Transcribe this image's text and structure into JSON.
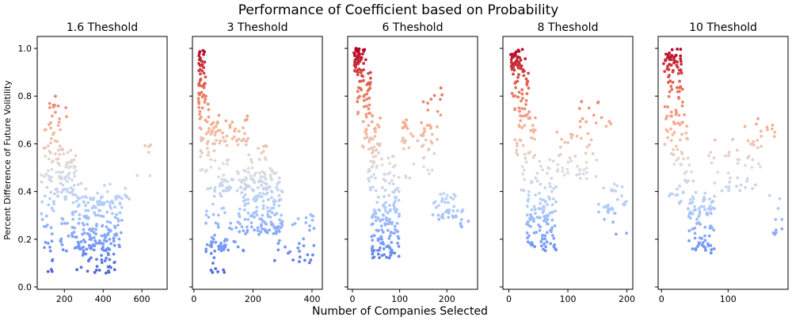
{
  "chart_data": {
    "type": "scatter",
    "title": "Performance of Coefficient based on Probability",
    "xlabel": "Number of Companies Selected",
    "ylabel": "Percent Difference of Future Volitility",
    "ylim": [
      -0.01,
      1.05
    ],
    "yticks": [
      0.0,
      0.2,
      0.4,
      0.6,
      0.8,
      1.0
    ],
    "ytick_labels": [
      "0.0",
      "0.2",
      "0.4",
      "0.6",
      "0.8",
      "1.0"
    ],
    "colormap": "coolwarm",
    "colormap_stops": [
      "#3b4cc0",
      "#7396f5",
      "#b0cbfc",
      "#dddddd",
      "#f6b396",
      "#e46e56",
      "#b40426"
    ],
    "panels": [
      {
        "title": "1.6 Theshold",
        "xlim": [
          60,
          730
        ],
        "xticks": [
          200,
          400,
          600
        ],
        "xtick_labels": [
          "200",
          "400",
          "600"
        ],
        "seed": 11,
        "clusters": [
          {
            "n": 25,
            "x": [
              90,
              200
            ],
            "y": [
              0.55,
              0.7
            ]
          },
          {
            "n": 12,
            "x": [
              120,
              240
            ],
            "y": [
              0.7,
              0.8
            ]
          },
          {
            "n": 60,
            "x": [
              160,
              260
            ],
            "y": [
              0.38,
              0.58
            ]
          },
          {
            "n": 30,
            "x": [
              80,
              160
            ],
            "y": [
              0.3,
              0.55
            ]
          },
          {
            "n": 18,
            "x": [
              80,
              140
            ],
            "y": [
              0.05,
              0.3
            ]
          },
          {
            "n": 160,
            "x": [
              180,
              500
            ],
            "y": [
              0.15,
              0.38
            ]
          },
          {
            "n": 60,
            "x": [
              260,
              460
            ],
            "y": [
              0.05,
              0.22
            ]
          },
          {
            "n": 25,
            "x": [
              260,
              560
            ],
            "y": [
              0.3,
              0.45
            ]
          },
          {
            "n": 6,
            "x": [
              560,
              700
            ],
            "y": [
              0.4,
              0.62
            ]
          }
        ]
      },
      {
        "title": "3 Theshold",
        "xlim": [
          -5,
          435
        ],
        "xticks": [
          0,
          200,
          400
        ],
        "xtick_labels": [
          "0",
          "200",
          "400"
        ],
        "seed": 23,
        "clusters": [
          {
            "n": 25,
            "x": [
              15,
              40
            ],
            "y": [
              0.86,
              1.0
            ]
          },
          {
            "n": 30,
            "x": [
              15,
              50
            ],
            "y": [
              0.7,
              0.86
            ]
          },
          {
            "n": 40,
            "x": [
              20,
              80
            ],
            "y": [
              0.48,
              0.7
            ]
          },
          {
            "n": 70,
            "x": [
              80,
              190
            ],
            "y": [
              0.4,
              0.72
            ]
          },
          {
            "n": 160,
            "x": [
              170,
              300
            ],
            "y": [
              0.22,
              0.5
            ]
          },
          {
            "n": 60,
            "x": [
              40,
              170
            ],
            "y": [
              0.15,
              0.45
            ]
          },
          {
            "n": 25,
            "x": [
              40,
              110
            ],
            "y": [
              0.06,
              0.2
            ]
          },
          {
            "n": 40,
            "x": [
              260,
              410
            ],
            "y": [
              0.1,
              0.32
            ]
          },
          {
            "n": 15,
            "x": [
              180,
              250
            ],
            "y": [
              0.48,
              0.6
            ]
          }
        ]
      },
      {
        "title": "6 Theshold",
        "xlim": [
          -10,
          265
        ],
        "xticks": [
          0,
          100,
          200
        ],
        "xtick_labels": [
          "0",
          "100",
          "200"
        ],
        "seed": 37,
        "clusters": [
          {
            "n": 50,
            "x": [
              3,
              30
            ],
            "y": [
              0.9,
              1.0
            ]
          },
          {
            "n": 40,
            "x": [
              10,
              40
            ],
            "y": [
              0.72,
              0.9
            ]
          },
          {
            "n": 35,
            "x": [
              20,
              60
            ],
            "y": [
              0.55,
              0.72
            ]
          },
          {
            "n": 60,
            "x": [
              30,
              100
            ],
            "y": [
              0.35,
              0.55
            ]
          },
          {
            "n": 110,
            "x": [
              40,
              100
            ],
            "y": [
              0.12,
              0.35
            ]
          },
          {
            "n": 50,
            "x": [
              100,
              180
            ],
            "y": [
              0.45,
              0.7
            ]
          },
          {
            "n": 35,
            "x": [
              170,
              220
            ],
            "y": [
              0.28,
              0.4
            ]
          },
          {
            "n": 8,
            "x": [
              220,
              250
            ],
            "y": [
              0.25,
              0.33
            ]
          },
          {
            "n": 10,
            "x": [
              150,
              190
            ],
            "y": [
              0.72,
              0.85
            ]
          }
        ]
      },
      {
        "title": "8 Theshold",
        "xlim": [
          -10,
          210
        ],
        "xticks": [
          0,
          100,
          200
        ],
        "xtick_labels": [
          "0",
          "100",
          "200"
        ],
        "seed": 53,
        "clusters": [
          {
            "n": 45,
            "x": [
              3,
              28
            ],
            "y": [
              0.9,
              1.0
            ]
          },
          {
            "n": 40,
            "x": [
              5,
              35
            ],
            "y": [
              0.7,
              0.9
            ]
          },
          {
            "n": 30,
            "x": [
              10,
              45
            ],
            "y": [
              0.55,
              0.72
            ]
          },
          {
            "n": 45,
            "x": [
              20,
              80
            ],
            "y": [
              0.35,
              0.55
            ]
          },
          {
            "n": 90,
            "x": [
              30,
              80
            ],
            "y": [
              0.15,
              0.35
            ]
          },
          {
            "n": 45,
            "x": [
              80,
              150
            ],
            "y": [
              0.45,
              0.65
            ]
          },
          {
            "n": 25,
            "x": [
              160,
              200
            ],
            "y": [
              0.3,
              0.45
            ]
          },
          {
            "n": 15,
            "x": [
              100,
              180
            ],
            "y": [
              0.66,
              0.78
            ]
          },
          {
            "n": 8,
            "x": [
              150,
              200
            ],
            "y": [
              0.22,
              0.35
            ]
          }
        ]
      },
      {
        "title": "10 Theshold",
        "xlim": [
          -5,
          190
        ],
        "xticks": [
          0,
          100
        ],
        "xtick_labels": [
          "0",
          "100"
        ],
        "seed": 71,
        "clusters": [
          {
            "n": 40,
            "x": [
              3,
              30
            ],
            "y": [
              0.9,
              1.0
            ]
          },
          {
            "n": 35,
            "x": [
              5,
              35
            ],
            "y": [
              0.7,
              0.9
            ]
          },
          {
            "n": 30,
            "x": [
              5,
              40
            ],
            "y": [
              0.55,
              0.7
            ]
          },
          {
            "n": 30,
            "x": [
              10,
              50
            ],
            "y": [
              0.35,
              0.55
            ]
          },
          {
            "n": 80,
            "x": [
              40,
              80
            ],
            "y": [
              0.14,
              0.4
            ]
          },
          {
            "n": 45,
            "x": [
              70,
              150
            ],
            "y": [
              0.4,
              0.62
            ]
          },
          {
            "n": 12,
            "x": [
              120,
              175
            ],
            "y": [
              0.6,
              0.72
            ]
          },
          {
            "n": 10,
            "x": [
              160,
              185
            ],
            "y": [
              0.22,
              0.4
            ]
          }
        ]
      }
    ]
  }
}
